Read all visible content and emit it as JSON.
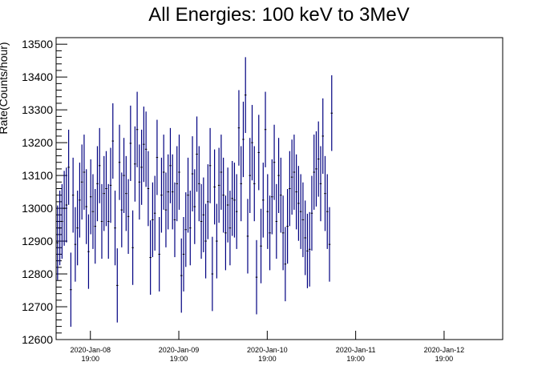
{
  "chart_data": {
    "type": "scatter",
    "title": "All Energies:  100 keV to 3MeV",
    "xlabel": "",
    "ylabel": "Rate(Counts/hour)",
    "ylim": [
      12600,
      13520
    ],
    "yticks": [
      12600,
      12700,
      12800,
      12900,
      13000,
      13100,
      13200,
      13300,
      13400,
      13500
    ],
    "xlim_hours_from_first_label": [
      -9.3,
      111.9
    ],
    "xticks": [
      {
        "line1": "2020-Jan-08",
        "line2": "19:00",
        "hours_from_first_label": 0
      },
      {
        "line1": "2020-Jan-09",
        "line2": "19:00",
        "hours_from_first_label": 24
      },
      {
        "line1": "2020-Jan-10",
        "line2": "19:00",
        "hours_from_first_label": 48
      },
      {
        "line1": "2020-Jan-11",
        "line2": "19:00",
        "hours_from_first_label": 72
      },
      {
        "line1": "2020-Jan-12",
        "line2": "19:00",
        "hours_from_first_label": 96
      }
    ],
    "grid": false,
    "legend": "none",
    "marker_color": "#000080",
    "points": [
      [
        -8.9,
        12895
      ],
      [
        -8.3,
        12940
      ],
      [
        -7.7,
        12960
      ],
      [
        -7.1,
        13000
      ],
      [
        -6.5,
        13010
      ],
      [
        -5.9,
        13125
      ],
      [
        -5.3,
        12752
      ],
      [
        -4.7,
        13040
      ],
      [
        -4.1,
        12890
      ],
      [
        -3.5,
        12940
      ],
      [
        -2.9,
        13025
      ],
      [
        -2.3,
        13080
      ],
      [
        -1.7,
        13110
      ],
      [
        -1.1,
        13005
      ],
      [
        -0.5,
        12868
      ],
      [
        0.1,
        13035
      ],
      [
        0.7,
        12990
      ],
      [
        1.3,
        12945
      ],
      [
        1.9,
        13075
      ],
      [
        2.5,
        13130
      ],
      [
        3.1,
        12960
      ],
      [
        3.7,
        13045
      ],
      [
        4.3,
        13060
      ],
      [
        4.9,
        12960
      ],
      [
        5.5,
        13070
      ],
      [
        6.1,
        13205
      ],
      [
        6.7,
        12940
      ],
      [
        7.3,
        12765
      ],
      [
        7.9,
        13140
      ],
      [
        8.5,
        12995
      ],
      [
        9.1,
        13100
      ],
      [
        9.7,
        13045
      ],
      [
        10.3,
        12975
      ],
      [
        10.9,
        13198
      ],
      [
        11.5,
        12880
      ],
      [
        12.1,
        13135
      ],
      [
        12.7,
        13240
      ],
      [
        13.3,
        13080
      ],
      [
        13.9,
        13125
      ],
      [
        14.5,
        13195
      ],
      [
        15.1,
        13180
      ],
      [
        15.7,
        13060
      ],
      [
        16.3,
        12850
      ],
      [
        16.9,
        12965
      ],
      [
        17.5,
        12985
      ],
      [
        18.1,
        13155
      ],
      [
        18.7,
        12860
      ],
      [
        19.3,
        13040
      ],
      [
        19.9,
        13110
      ],
      [
        20.5,
        12995
      ],
      [
        21.1,
        13050
      ],
      [
        21.7,
        13130
      ],
      [
        22.3,
        13050
      ],
      [
        22.9,
        12965
      ],
      [
        23.5,
        13075
      ],
      [
        24.1,
        13110
      ],
      [
        24.7,
        12795
      ],
      [
        25.3,
        12860
      ],
      [
        25.9,
        12935
      ],
      [
        26.5,
        13040
      ],
      [
        27.1,
        12940
      ],
      [
        27.7,
        13105
      ],
      [
        28.3,
        13005
      ],
      [
        28.9,
        13165
      ],
      [
        29.5,
        13075
      ],
      [
        30.1,
        12960
      ],
      [
        30.7,
        12980
      ],
      [
        31.3,
        12900
      ],
      [
        31.9,
        13020
      ],
      [
        32.5,
        13130
      ],
      [
        33.1,
        12800
      ],
      [
        33.7,
        13065
      ],
      [
        34.3,
        12900
      ],
      [
        34.9,
        13070
      ],
      [
        35.5,
        13110
      ],
      [
        36.1,
        13040
      ],
      [
        36.7,
        12925
      ],
      [
        37.3,
        13010
      ],
      [
        37.9,
        12940
      ],
      [
        38.5,
        13030
      ],
      [
        39.1,
        13025
      ],
      [
        39.7,
        12990
      ],
      [
        40.3,
        13245
      ],
      [
        40.9,
        13075
      ],
      [
        41.5,
        13210
      ],
      [
        42.1,
        13345
      ],
      [
        42.7,
        12915
      ],
      [
        43.3,
        13100
      ],
      [
        43.9,
        13200
      ],
      [
        44.5,
        13075
      ],
      [
        45.1,
        12790
      ],
      [
        45.7,
        13170
      ],
      [
        46.3,
        12885
      ],
      [
        46.9,
        13025
      ],
      [
        47.5,
        13240
      ],
      [
        48.1,
        12990
      ],
      [
        48.7,
        12925
      ],
      [
        49.3,
        13035
      ],
      [
        49.9,
        13140
      ],
      [
        50.5,
        12960
      ],
      [
        51.1,
        13100
      ],
      [
        51.7,
        13040
      ],
      [
        52.3,
        12925
      ],
      [
        52.9,
        12830
      ],
      [
        53.5,
        12945
      ],
      [
        54.1,
        13060
      ],
      [
        54.7,
        13095
      ],
      [
        55.3,
        13110
      ],
      [
        55.9,
        13050
      ],
      [
        56.5,
        13015
      ],
      [
        57.1,
        12990
      ],
      [
        57.7,
        12965
      ],
      [
        58.3,
        12910
      ],
      [
        58.9,
        12870
      ],
      [
        59.5,
        12875
      ],
      [
        60.1,
        12985
      ],
      [
        60.7,
        13110
      ],
      [
        61.3,
        13120
      ],
      [
        61.9,
        13150
      ],
      [
        62.5,
        13075
      ],
      [
        63.1,
        13220
      ],
      [
        63.7,
        13045
      ],
      [
        64.3,
        12990
      ],
      [
        64.9,
        12890
      ],
      [
        65.5,
        13290
      ]
    ]
  }
}
